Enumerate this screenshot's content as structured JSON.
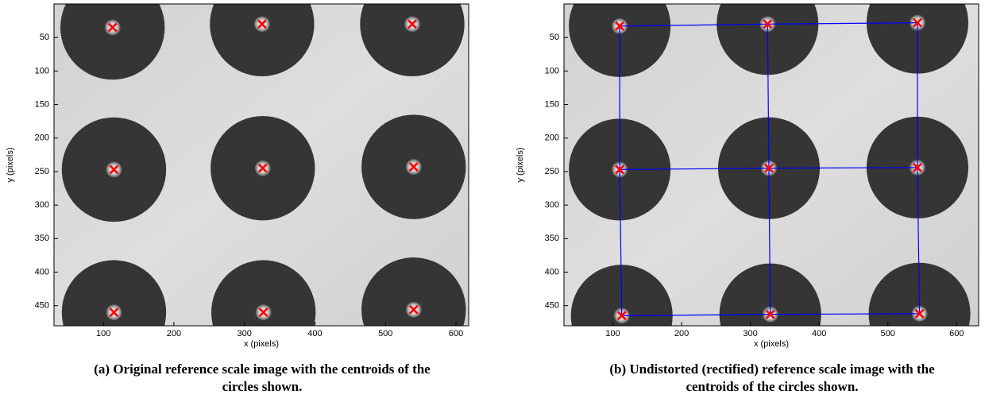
{
  "chart_data": [
    {
      "type": "scatter",
      "caption": "(a) Original reference scale image with the centroids of the circles shown.",
      "xlabel": "x (pixels)",
      "ylabel": "y (pixels)",
      "x": [
        113,
        325,
        538,
        115,
        326,
        540,
        115,
        327,
        540
      ],
      "y": [
        35,
        30,
        30,
        247,
        245,
        243,
        460,
        460,
        456
      ],
      "marker_color": "#ff0000",
      "xlim": [
        30,
        618
      ],
      "ylim": [
        0,
        480
      ],
      "y_reversed": true,
      "xticks": [
        100,
        200,
        300,
        400,
        500,
        600
      ],
      "yticks": [
        50,
        100,
        150,
        200,
        250,
        300,
        350,
        400,
        450
      ]
    },
    {
      "type": "scatter",
      "caption": "(b) Undistorted (rectified) reference scale image with the centroids of the circles shown.",
      "xlabel": "x (pixels)",
      "ylabel": "y (pixels)",
      "x": [
        110,
        325,
        543,
        110,
        327,
        543,
        113,
        329,
        546
      ],
      "y": [
        33,
        30,
        28,
        247,
        245,
        244,
        465,
        463,
        462
      ],
      "marker_color": "#ff0000",
      "mesh_color": "#0000ff",
      "mesh_columns": 3,
      "xlim": [
        29,
        632
      ],
      "ylim": [
        0,
        480
      ],
      "y_reversed": true,
      "xticks": [
        100,
        200,
        300,
        400,
        500,
        600
      ],
      "yticks": [
        50,
        100,
        150,
        200,
        250,
        300,
        350,
        400,
        450
      ]
    }
  ]
}
